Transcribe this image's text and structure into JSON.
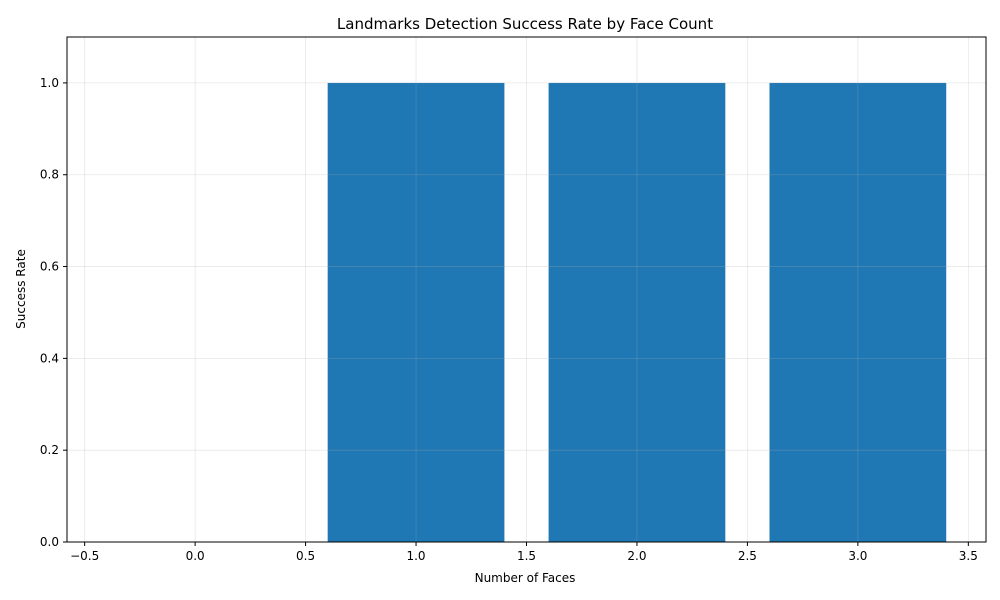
{
  "chart_data": {
    "type": "bar",
    "title": "Landmarks Detection Success Rate by Face Count",
    "xlabel": "Number of Faces",
    "ylabel": "Success Rate",
    "x": [
      0,
      1,
      2,
      3
    ],
    "values": [
      0.0,
      1.0,
      1.0,
      1.0
    ],
    "bar_width": 0.8,
    "xlim": [
      -0.58,
      3.58
    ],
    "ylim": [
      0,
      1.1
    ],
    "x_ticks": [
      -0.5,
      0.0,
      0.5,
      1.0,
      1.5,
      2.0,
      2.5,
      3.0,
      3.5
    ],
    "x_tick_labels": [
      "−0.5",
      "0.0",
      "0.5",
      "1.0",
      "1.5",
      "2.0",
      "2.5",
      "3.0",
      "3.5"
    ],
    "y_ticks": [
      0.0,
      0.2,
      0.4,
      0.6,
      0.8,
      1.0
    ],
    "y_tick_labels": [
      "0.0",
      "0.2",
      "0.4",
      "0.6",
      "0.8",
      "1.0"
    ],
    "grid": true,
    "colors": {
      "bar": "#1f77b4",
      "grid": "#e5e5e5",
      "axis": "#000000",
      "background": "#ffffff"
    }
  }
}
